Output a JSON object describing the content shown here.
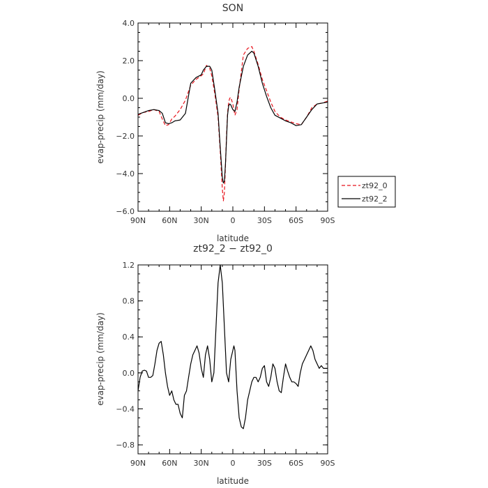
{
  "chart_data": [
    {
      "type": "line",
      "title": "SON",
      "xlabel": "latitude",
      "ylabel": "evap-precip (mm/day)",
      "xlim": [
        90,
        -90
      ],
      "ylim": [
        -6,
        4
      ],
      "x_ticks": [
        90,
        60,
        30,
        0,
        -30,
        -60,
        -90
      ],
      "x_tick_labels": [
        "90N",
        "60N",
        "30N",
        "0",
        "30S",
        "60S",
        "90S"
      ],
      "y_ticks": [
        -6,
        -4,
        -2,
        0,
        2,
        4
      ],
      "y_tick_labels": [
        "−6.0",
        "−4.0",
        "−2.0",
        "0.0",
        "2.0",
        "4.0"
      ],
      "legend_position": "right",
      "series": [
        {
          "name": "zt92_0",
          "color": "#e8141c",
          "dash": "dashed",
          "x": [
            90,
            85,
            80,
            75,
            70,
            67,
            64,
            61,
            58,
            55,
            50,
            45,
            40,
            35,
            30,
            28,
            25,
            22,
            20,
            17,
            14,
            12,
            10,
            9,
            8,
            7,
            6,
            5,
            4,
            3,
            2,
            0,
            -2,
            -4,
            -6,
            -10,
            -14,
            -18,
            -20,
            -24,
            -28,
            -32,
            -36,
            -40,
            -45,
            -50,
            -55,
            -60,
            -65,
            -70,
            -75,
            -80,
            -85,
            -90
          ],
          "y": [
            -0.9,
            -0.75,
            -0.7,
            -0.6,
            -0.7,
            -1.1,
            -1.45,
            -1.4,
            -1.1,
            -0.95,
            -0.6,
            -0.1,
            0.7,
            1.0,
            1.2,
            1.3,
            1.75,
            1.6,
            1.2,
            0.2,
            -1.0,
            -2.8,
            -4.8,
            -5.45,
            -5.0,
            -3.6,
            -2.0,
            -0.8,
            -0.2,
            0.0,
            0.05,
            -0.3,
            -0.9,
            -0.6,
            0.5,
            2.3,
            2.65,
            2.75,
            2.5,
            1.8,
            1.0,
            0.4,
            -0.2,
            -0.7,
            -1.0,
            -1.15,
            -1.25,
            -1.35,
            -1.4,
            -1.0,
            -0.5,
            -0.3,
            -0.25,
            -0.15
          ]
        },
        {
          "name": "zt92_2",
          "color": "#000000",
          "dash": "solid",
          "x": [
            90,
            85,
            80,
            75,
            70,
            67,
            64,
            61,
            58,
            55,
            50,
            45,
            40,
            35,
            30,
            28,
            25,
            22,
            20,
            17,
            14,
            12,
            10,
            9,
            8,
            7,
            6,
            5,
            4,
            3,
            2,
            0,
            -2,
            -4,
            -6,
            -10,
            -14,
            -18,
            -20,
            -24,
            -28,
            -32,
            -36,
            -40,
            -45,
            -50,
            -55,
            -60,
            -65,
            -70,
            -75,
            -80,
            -85,
            -90
          ],
          "y": [
            -0.85,
            -0.75,
            -0.65,
            -0.6,
            -0.65,
            -0.8,
            -1.3,
            -1.35,
            -1.3,
            -1.2,
            -1.15,
            -0.8,
            0.8,
            1.1,
            1.25,
            1.5,
            1.7,
            1.7,
            1.5,
            0.4,
            -0.8,
            -2.6,
            -4.2,
            -4.5,
            -4.4,
            -3.5,
            -2.2,
            -0.9,
            -0.4,
            -0.3,
            -0.35,
            -0.6,
            -0.7,
            -0.2,
            0.6,
            1.7,
            2.3,
            2.5,
            2.4,
            1.7,
            0.8,
            0.1,
            -0.5,
            -0.9,
            -1.05,
            -1.2,
            -1.3,
            -1.45,
            -1.4,
            -1.0,
            -0.6,
            -0.3,
            -0.25,
            -0.2
          ]
        }
      ]
    },
    {
      "type": "line",
      "title": "zt92_2 − zt92_0",
      "xlabel": "latitude",
      "ylabel": "evap-precip (mm/day)",
      "xlim": [
        90,
        -90
      ],
      "ylim": [
        -0.9,
        1.2
      ],
      "x_ticks": [
        90,
        60,
        30,
        0,
        -30,
        -60,
        -90
      ],
      "x_tick_labels": [
        "90N",
        "60N",
        "30N",
        "0",
        "30S",
        "60S",
        "90S"
      ],
      "y_ticks": [
        -0.8,
        -0.4,
        0.0,
        0.4,
        0.8,
        1.2
      ],
      "y_tick_labels": [
        "−0.8",
        "−0.4",
        "0.0",
        "0.4",
        "0.8",
        "1.2"
      ],
      "series": [
        {
          "color": "#000000",
          "dash": "solid",
          "x": [
            90,
            88,
            86,
            84,
            82,
            80,
            78,
            76,
            74,
            72,
            70,
            68,
            66,
            64,
            62,
            60,
            58,
            56,
            54,
            52,
            50,
            48,
            46,
            44,
            42,
            40,
            38,
            36,
            34,
            32,
            30,
            28,
            26,
            24,
            22,
            20,
            18,
            16,
            14,
            12,
            10,
            8,
            6,
            4,
            2,
            0,
            -1,
            -2,
            -4,
            -6,
            -8,
            -10,
            -12,
            -14,
            -16,
            -18,
            -20,
            -22,
            -24,
            -26,
            -28,
            -30,
            -32,
            -34,
            -36,
            -38,
            -40,
            -42,
            -44,
            -46,
            -48,
            -50,
            -52,
            -54,
            -56,
            -58,
            -60,
            -62,
            -64,
            -66,
            -68,
            -70,
            -72,
            -74,
            -76,
            -78,
            -80,
            -82,
            -84,
            -86,
            -88,
            -90
          ],
          "y": [
            -0.2,
            -0.05,
            0.02,
            0.03,
            0.02,
            -0.05,
            -0.05,
            -0.03,
            0.1,
            0.25,
            0.33,
            0.35,
            0.2,
            0.0,
            -0.15,
            -0.25,
            -0.2,
            -0.3,
            -0.35,
            -0.35,
            -0.45,
            -0.5,
            -0.25,
            -0.2,
            -0.05,
            0.1,
            0.2,
            0.25,
            0.3,
            0.22,
            0.05,
            -0.05,
            0.2,
            0.3,
            0.15,
            -0.1,
            0.0,
            0.5,
            1.0,
            1.2,
            1.0,
            0.5,
            0.0,
            -0.1,
            0.15,
            0.25,
            0.3,
            0.25,
            -0.2,
            -0.5,
            -0.6,
            -0.62,
            -0.5,
            -0.3,
            -0.2,
            -0.1,
            -0.05,
            -0.05,
            -0.1,
            -0.05,
            0.05,
            0.08,
            -0.1,
            -0.15,
            -0.05,
            0.1,
            0.05,
            -0.1,
            -0.2,
            -0.22,
            -0.05,
            0.1,
            0.02,
            -0.05,
            -0.1,
            -0.1,
            -0.12,
            -0.15,
            0.0,
            0.1,
            0.15,
            0.2,
            0.25,
            0.3,
            0.25,
            0.15,
            0.1,
            0.05,
            0.08,
            0.05,
            0.05,
            0.05
          ]
        }
      ]
    }
  ]
}
